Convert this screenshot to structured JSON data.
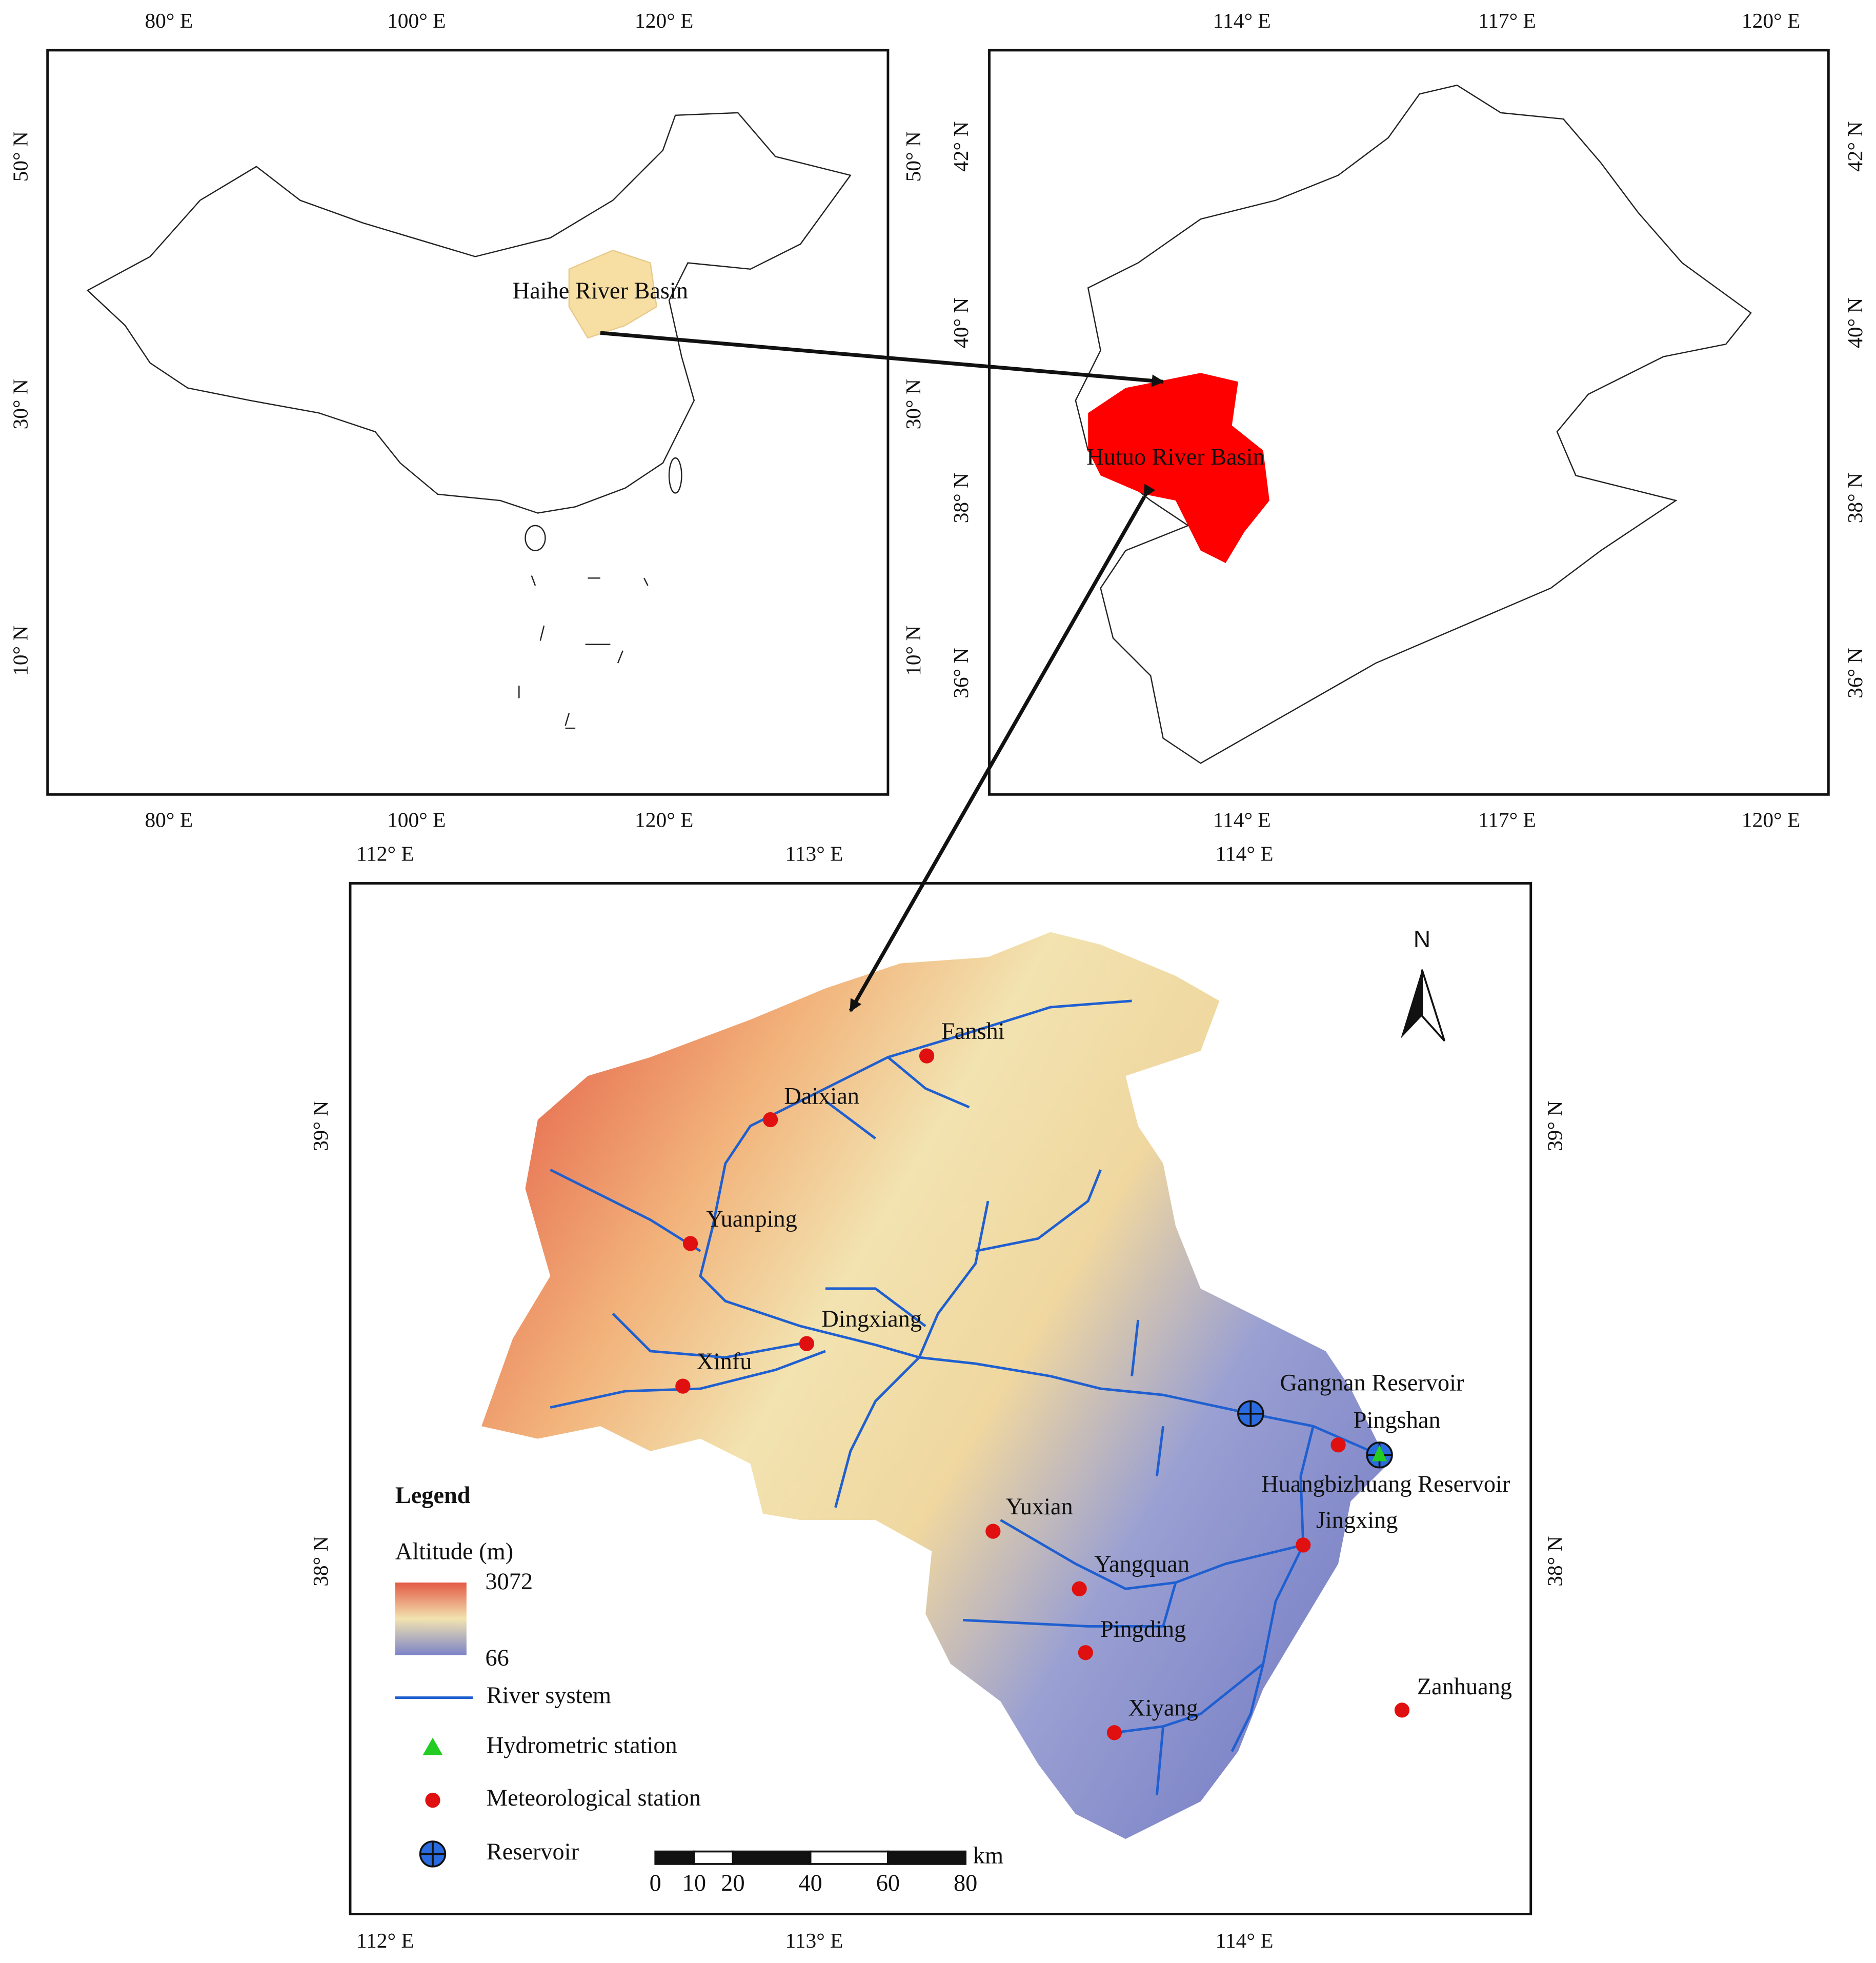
{
  "china_map": {
    "x_ticks": [
      "80° E",
      "100° E",
      "120° E"
    ],
    "y_ticks": [
      "50° N",
      "30° N",
      "10° N"
    ],
    "label": "Haihe River Basin"
  },
  "haihe_map": {
    "x_ticks": [
      "114° E",
      "117° E",
      "120° E"
    ],
    "y_ticks": [
      "42° N",
      "40° N",
      "38° N",
      "36° N"
    ],
    "label": "Hutuo River Basin"
  },
  "hutuo_map": {
    "x_ticks": [
      "112° E",
      "113° E",
      "114° E"
    ],
    "y_ticks": [
      "39° N",
      "38° N"
    ],
    "north": "N",
    "stations": [
      "Fanshi",
      "Daixian",
      "Yuanping",
      "Dingxiang",
      "Xinfu",
      "Pingshan",
      "Yuxian",
      "Yangquan",
      "Jingxing",
      "Pingding",
      "Xiyang",
      "Zanhuang"
    ],
    "reservoirs": [
      "Gangnan Reservoir",
      "Huangbizhuang Reservoir"
    ],
    "legend": {
      "title": "Legend",
      "altitude_title": "Altitude (m)",
      "altitude_max": 3072,
      "altitude_min": 66,
      "items": [
        "River system",
        "Hydrometric station",
        "Meteorological station",
        "Reservoir"
      ]
    },
    "scale_bar": {
      "unit": "km",
      "ticks": [
        0,
        10,
        20,
        40,
        60,
        80
      ]
    }
  }
}
